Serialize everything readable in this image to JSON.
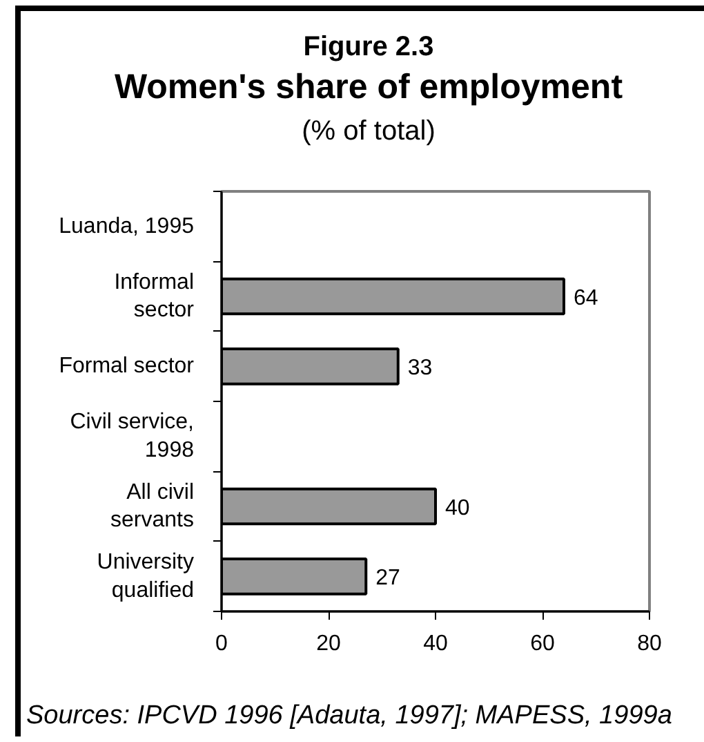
{
  "chart_data": {
    "type": "bar",
    "orientation": "horizontal",
    "title": "Figure 2.3\nWomen's share of employment",
    "subtitle": "(% of total)",
    "categories": [
      "Luanda, 1995",
      "Informal sector",
      "Formal sector",
      "Civil service, 1998",
      "All civil servants",
      "University qualified"
    ],
    "values": [
      null,
      64,
      33,
      null,
      40,
      27
    ],
    "color": "#999999",
    "xlim": [
      0,
      80
    ],
    "xticks": [
      0,
      20,
      40,
      60,
      80
    ],
    "data_labels": true,
    "annotations": [
      "Sources: IPCVD 1996 [Adauta, 1997]; MAPESS, 1999a"
    ]
  }
}
